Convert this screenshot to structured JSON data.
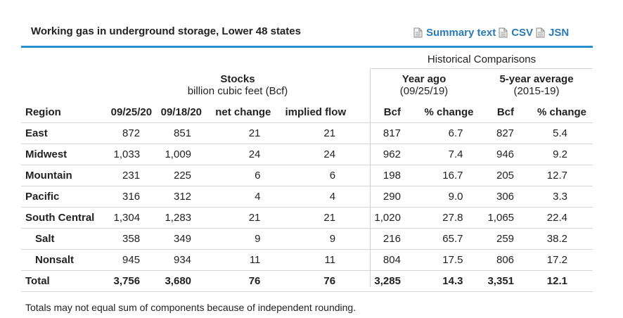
{
  "title": "Working gas in underground storage, Lower 48 states",
  "links": {
    "summary": "Summary text",
    "csv": "CSV",
    "json": "JSN"
  },
  "colors": {
    "accent": "#2a8fd0",
    "link": "#2a7ab8"
  },
  "header": {
    "historical": "Historical Comparisons",
    "stocks_title": "Stocks",
    "stocks_unit": "billion cubic feet (Bcf)",
    "year_ago_title": "Year ago",
    "year_ago_date": "(09/25/19)",
    "five_year_title": "5-year average",
    "five_year_range": "(2015-19)"
  },
  "columns": [
    "Region",
    "09/25/20",
    "09/18/20",
    "net change",
    "implied flow",
    "Bcf",
    "% change",
    "Bcf",
    "% change"
  ],
  "rows": [
    [
      "East",
      "872",
      "851",
      "21",
      "21",
      "817",
      "6.7",
      "827",
      "5.4"
    ],
    [
      "Midwest",
      "1,033",
      "1,009",
      "24",
      "24",
      "962",
      "7.4",
      "946",
      "9.2"
    ],
    [
      "Mountain",
      "231",
      "225",
      "6",
      "6",
      "198",
      "16.7",
      "205",
      "12.7"
    ],
    [
      "Pacific",
      "316",
      "312",
      "4",
      "4",
      "290",
      "9.0",
      "306",
      "3.3"
    ],
    [
      "South Central",
      "1,304",
      "1,283",
      "21",
      "21",
      "1,020",
      "27.8",
      "1,065",
      "22.4"
    ],
    [
      "Salt",
      "358",
      "349",
      "9",
      "9",
      "216",
      "65.7",
      "259",
      "38.2"
    ],
    [
      "Nonsalt",
      "945",
      "934",
      "11",
      "11",
      "804",
      "17.5",
      "806",
      "17.2"
    ],
    [
      "Total",
      "3,756",
      "3,680",
      "76",
      "76",
      "3,285",
      "14.3",
      "3,351",
      "12.1"
    ]
  ],
  "footnote": "Totals may not equal sum of components because of independent rounding."
}
